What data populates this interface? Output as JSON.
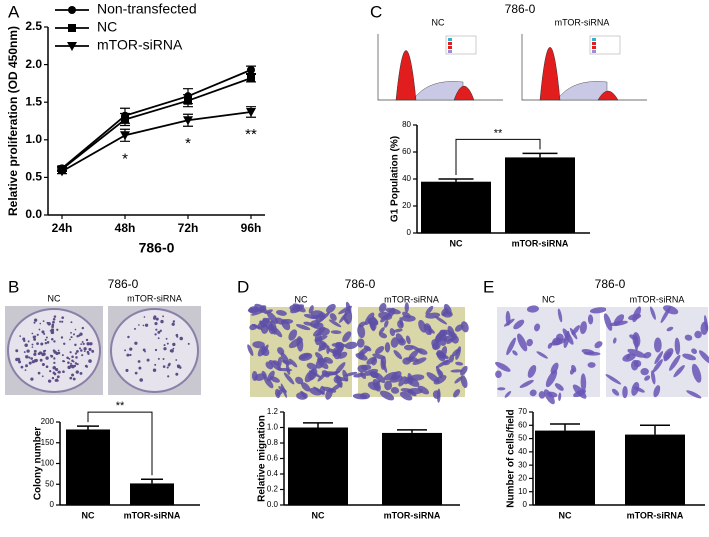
{
  "chart_data": [
    {
      "type": "line",
      "panel": "A",
      "xlabel": "786-0",
      "ylabel": "Relative proliferation (OD 450nm)",
      "categories": [
        "24h",
        "48h",
        "72h",
        "96h"
      ],
      "series": [
        {
          "name": "Non-transfected",
          "color": "#000000",
          "marker": "circle",
          "values": [
            0.62,
            1.32,
            1.58,
            1.93
          ],
          "errors": [
            0.03,
            0.1,
            0.1,
            0.05
          ]
        },
        {
          "name": "NC",
          "color": "#000000",
          "marker": "square",
          "values": [
            0.61,
            1.27,
            1.52,
            1.82
          ],
          "errors": [
            0.03,
            0.08,
            0.08,
            0.05
          ]
        },
        {
          "name": "mTOR-siRNA",
          "color": "#000000",
          "marker": "triangle-down",
          "values": [
            0.58,
            1.06,
            1.26,
            1.37
          ],
          "errors": [
            0.03,
            0.08,
            0.08,
            0.07
          ]
        }
      ],
      "annotations": [
        null,
        "*",
        "*",
        "**"
      ],
      "ylim": [
        0,
        2.5
      ],
      "yticks": [
        {
          "value": 0,
          "label": "0.0"
        },
        0.5,
        {
          "value": 1,
          "label": "1.0"
        },
        1.5,
        {
          "value": 2,
          "label": "2.0"
        },
        2.5
      ]
    },
    {
      "type": "bar",
      "panel": "B",
      "title": "786-0",
      "image_labels": [
        "NC",
        "mTOR-siRNA"
      ],
      "ylabel": "Colony number",
      "categories": [
        "NC",
        "mTOR-siRNA"
      ],
      "values": [
        182,
        52
      ],
      "errors": [
        8,
        10
      ],
      "color": "#000000",
      "significance": "**",
      "ylim": [
        0,
        200
      ],
      "yticks": [
        0,
        50,
        100,
        150,
        200
      ]
    },
    {
      "type": "bar",
      "panel": "C",
      "title": "786-0",
      "image_labels": [
        "NC",
        "mTOR-siRNA"
      ],
      "ylabel": "G1 Population (%)",
      "categories": [
        "NC",
        "mTOR-siRNA"
      ],
      "values": [
        38,
        56
      ],
      "errors": [
        2,
        3
      ],
      "color": "#000000",
      "significance": "**",
      "ylim": [
        0,
        80
      ],
      "yticks": [
        0,
        20,
        40,
        60,
        80
      ]
    },
    {
      "type": "bar",
      "panel": "D",
      "title": "786-0",
      "image_labels": [
        "NC",
        "mTOR-siRNA"
      ],
      "ylabel": "Relative migration",
      "categories": [
        "NC",
        "mTOR-siRNA"
      ],
      "values": [
        1.0,
        0.93
      ],
      "errors": [
        0.06,
        0.04
      ],
      "color": "#000000",
      "ylim": [
        0,
        1.2
      ],
      "yticks": [
        {
          "value": 0,
          "label": "0.0"
        },
        0.2,
        0.4,
        0.6,
        0.8,
        {
          "value": 1,
          "label": "1.0"
        },
        1.2
      ]
    },
    {
      "type": "bar",
      "panel": "E",
      "title": "786-0",
      "image_labels": [
        "NC",
        "mTOR-siRNA"
      ],
      "ylabel": "Number of cells/field",
      "categories": [
        "NC",
        "mTOR-siRNA"
      ],
      "values": [
        56,
        53
      ],
      "errors": [
        5,
        7
      ],
      "color": "#000000",
      "ylim": [
        0,
        70
      ],
      "yticks": [
        0,
        10,
        20,
        30,
        40,
        50,
        60,
        70
      ]
    }
  ]
}
